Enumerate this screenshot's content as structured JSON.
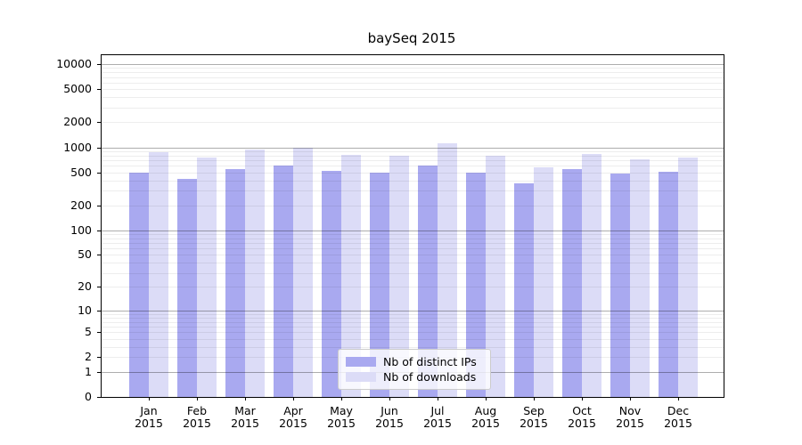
{
  "title": "baySeq 2015",
  "chart_data": {
    "type": "bar",
    "title": "baySeq 2015",
    "scale": "log1p",
    "grid": true,
    "legend_position": "lower center",
    "categories": [
      "Jan 2015",
      "Feb 2015",
      "Mar 2015",
      "Apr 2015",
      "May 2015",
      "Jun 2015",
      "Jul 2015",
      "Aug 2015",
      "Sep 2015",
      "Oct 2015",
      "Nov 2015",
      "Dec 2015"
    ],
    "series": [
      {
        "name": "Nb of distinct IPs",
        "color": "#a9a9f0",
        "values": [
          500,
          420,
          550,
          600,
          520,
          500,
          610,
          500,
          370,
          545,
          480,
          505
        ]
      },
      {
        "name": "Nb of downloads",
        "color": "#dcdcf7",
        "values": [
          870,
          760,
          950,
          1000,
          815,
          800,
          1130,
          790,
          580,
          830,
          710,
          750
        ]
      }
    ],
    "xlabel": "",
    "ylabel": "",
    "y_ticks": [
      0,
      1,
      2,
      5,
      10,
      20,
      50,
      100,
      200,
      500,
      1000,
      2000,
      5000,
      10000
    ],
    "major_grid_values": [
      1,
      10,
      100,
      1000,
      10000
    ],
    "ylim": [
      0,
      12800
    ]
  },
  "colors": {
    "bar_distinct_ips": "#a9a9f0",
    "bar_downloads": "#dcdcf7",
    "axis": "#000000",
    "major_grid": "#b0b0b0",
    "minor_grid": "#ececec",
    "background": "#ffffff"
  }
}
